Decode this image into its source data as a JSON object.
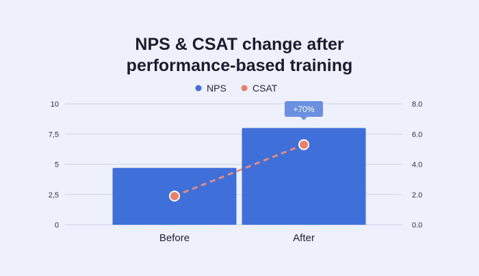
{
  "chart_data": {
    "type": "bar",
    "title_lines": [
      "NPS & CSAT change after",
      "performance-based training"
    ],
    "categories": [
      "Before",
      "After"
    ],
    "series": [
      {
        "name": "NPS",
        "type": "bar",
        "axis": "left",
        "values": [
          4.7,
          8.0
        ]
      },
      {
        "name": "CSAT",
        "type": "line",
        "axis": "right",
        "values": [
          1.9,
          5.3
        ]
      }
    ],
    "y_left": {
      "range": [
        0,
        10
      ],
      "ticks": [
        "0",
        "2,5",
        "5",
        "7,5",
        "10"
      ]
    },
    "y_right": {
      "range": [
        0,
        8
      ],
      "ticks": [
        "0.0",
        "2.0",
        "4.0",
        "6.0",
        "8.0"
      ]
    },
    "annotation": {
      "label": "+70%",
      "category": "After"
    },
    "legend": {
      "position": "top-center"
    },
    "grid": true
  },
  "colors": {
    "background": "#eef1fb",
    "nps_bar": "#3f6fd9",
    "csat_line": "#ec8a7a",
    "csat_marker": "#ec7f6c",
    "annotation_fill": "#6b90e0",
    "gridline": "#cfd4e4"
  }
}
